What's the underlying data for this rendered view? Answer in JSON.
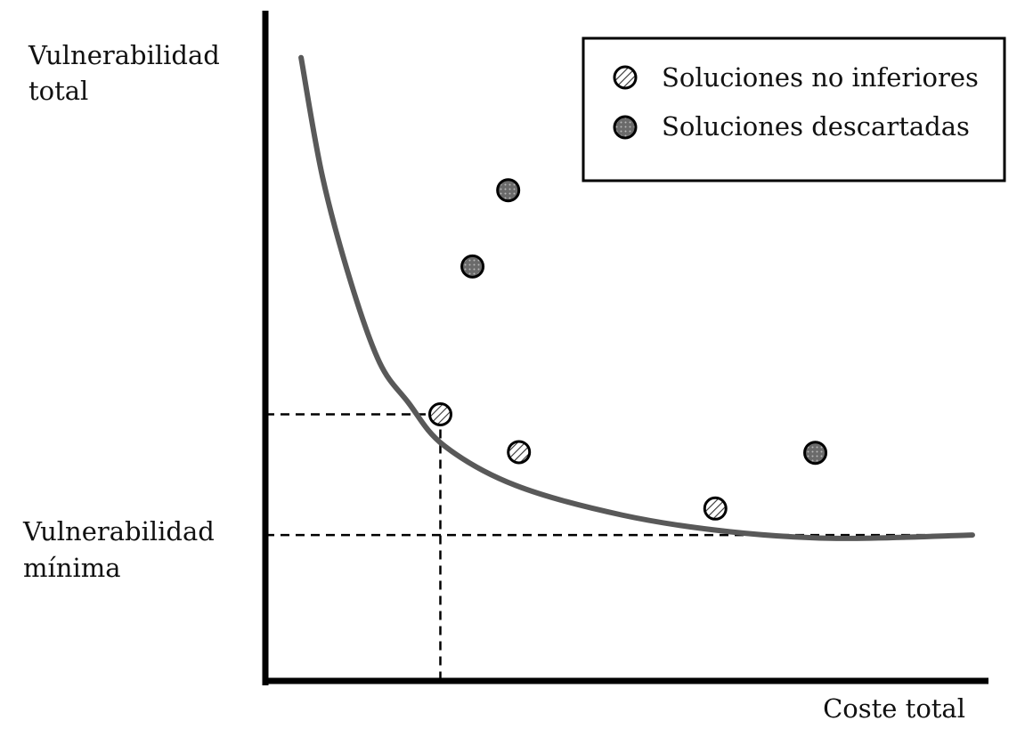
{
  "chart_data": {
    "type": "scatter",
    "title": "",
    "xlabel": "Coste total",
    "ylabel_lines": [
      "Vulnerabilidad",
      "total"
    ],
    "reference_label_lines": [
      "Vulnerabilidad",
      "mínima"
    ],
    "xlim": [
      0,
      10
    ],
    "ylim": [
      0,
      10
    ],
    "grid": false,
    "legend_position": "top-right",
    "curve": {
      "description_points": [
        [
          0.5,
          9.4
        ],
        [
          0.8,
          7.6
        ],
        [
          1.2,
          6.0
        ],
        [
          1.6,
          4.8
        ],
        [
          2.0,
          4.2
        ],
        [
          2.5,
          3.55
        ],
        [
          3.5,
          2.95
        ],
        [
          5.0,
          2.5
        ],
        [
          6.5,
          2.25
        ],
        [
          8.0,
          2.15
        ],
        [
          9.9,
          2.2
        ]
      ],
      "color": "#595959"
    },
    "series": [
      {
        "name": "Soluciones no inferiores",
        "points": [
          [
            2.45,
            4.02
          ],
          [
            3.55,
            3.45
          ],
          [
            6.3,
            2.6
          ]
        ],
        "color": "#d9d9d9"
      },
      {
        "name": "Soluciones descartadas",
        "points": [
          [
            3.4,
            7.4
          ],
          [
            2.9,
            6.25
          ],
          [
            7.7,
            3.44
          ]
        ],
        "color": "#6e6e6e"
      }
    ],
    "reference_lines": {
      "x": 2.45,
      "y_upper": 4.02,
      "y_min": 2.2
    }
  }
}
